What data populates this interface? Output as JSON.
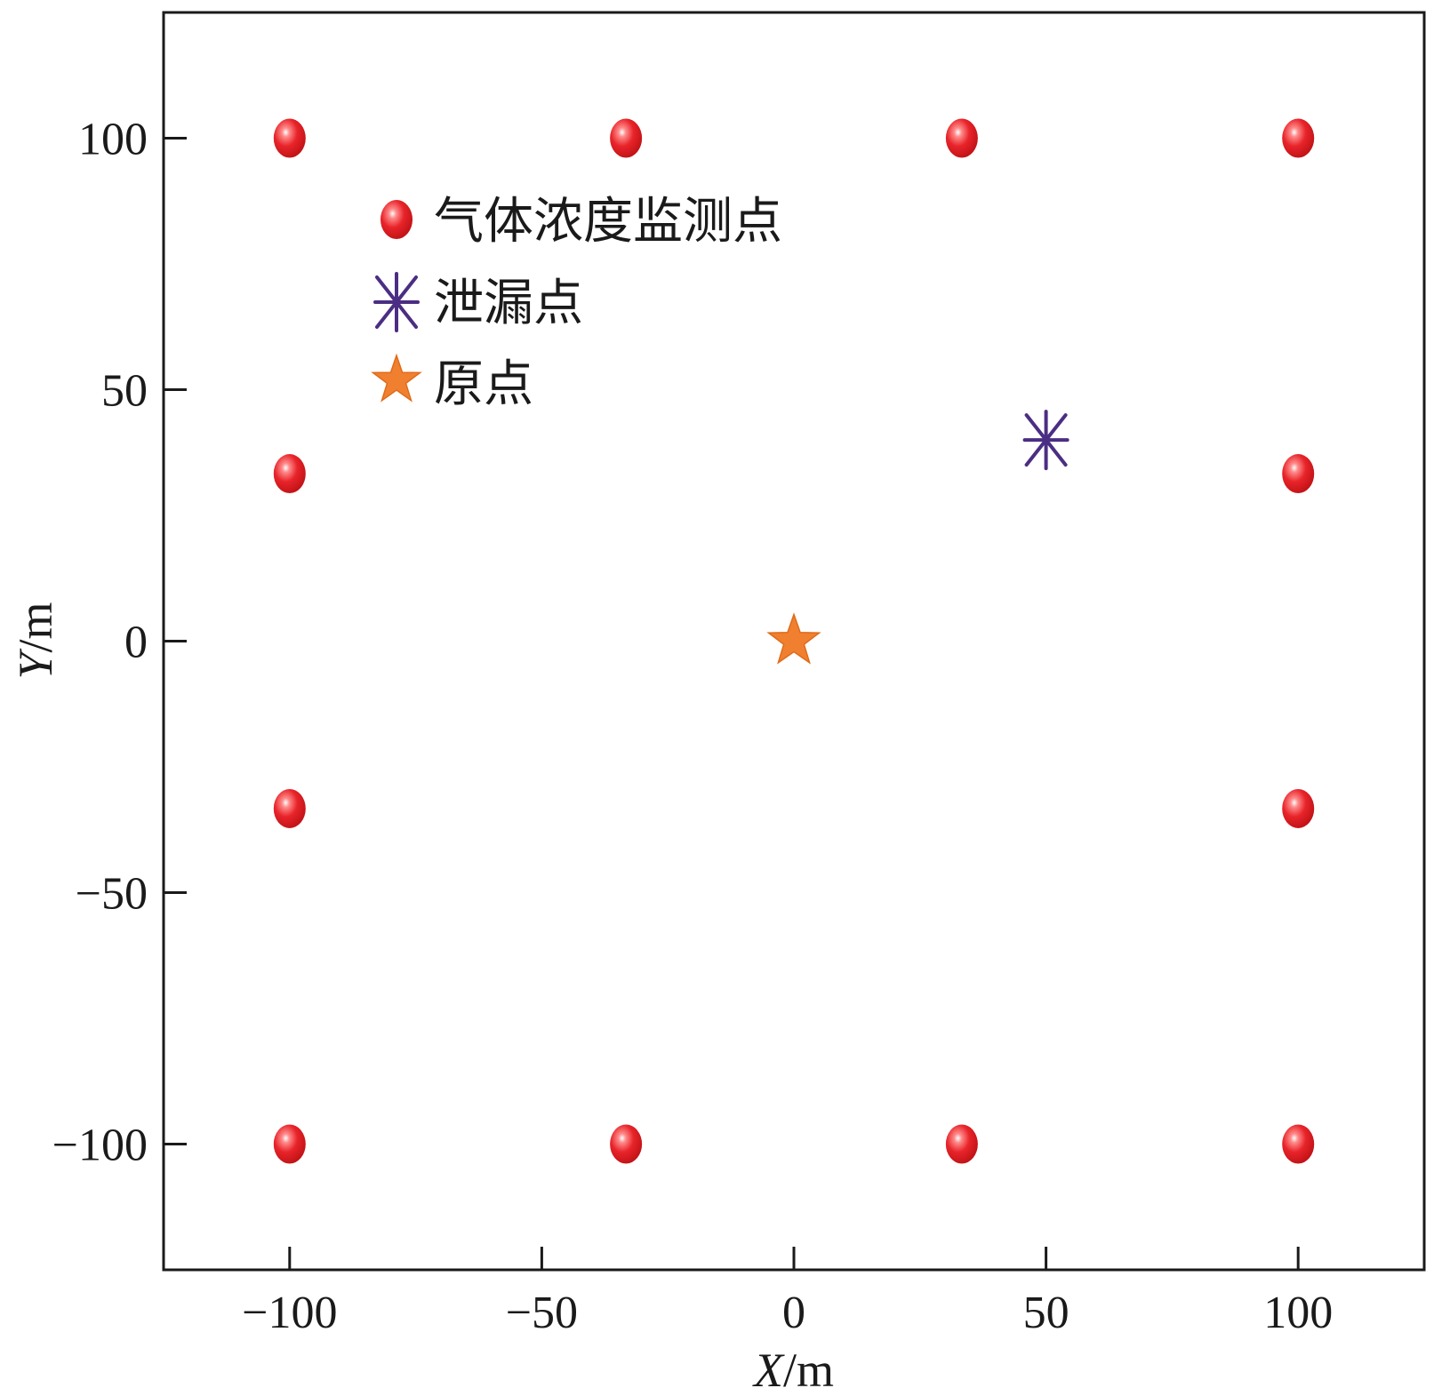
{
  "chart_data": {
    "type": "scatter",
    "title": "",
    "xlabel": {
      "var": "X",
      "unit": "/m"
    },
    "ylabel": {
      "var": "Y",
      "unit": "/m"
    },
    "xlim": [
      -125,
      125
    ],
    "ylim": [
      -125,
      125
    ],
    "xticks": [
      -100,
      -50,
      0,
      50,
      100
    ],
    "yticks": [
      -100,
      -50,
      0,
      50,
      100
    ],
    "grid": false,
    "legend_position": "top-left",
    "series": [
      {
        "name": "气体浓度监测点",
        "marker": "sphere",
        "color": "#e8242a",
        "points": [
          {
            "x": -100,
            "y": 100
          },
          {
            "x": -33.3,
            "y": 100
          },
          {
            "x": 33.3,
            "y": 100
          },
          {
            "x": 100,
            "y": 100
          },
          {
            "x": -100,
            "y": 33.3
          },
          {
            "x": 100,
            "y": 33.3
          },
          {
            "x": -100,
            "y": -33.3
          },
          {
            "x": 100,
            "y": -33.3
          },
          {
            "x": -100,
            "y": -100
          },
          {
            "x": -33.3,
            "y": -100
          },
          {
            "x": 33.3,
            "y": -100
          },
          {
            "x": 100,
            "y": -100
          }
        ]
      },
      {
        "name": "泄漏点",
        "marker": "asterisk",
        "color": "#4b2e83",
        "points": [
          {
            "x": 50,
            "y": 40
          }
        ]
      },
      {
        "name": "原点",
        "marker": "star",
        "color": "#f08030",
        "points": [
          {
            "x": 0,
            "y": 0
          }
        ]
      }
    ]
  }
}
